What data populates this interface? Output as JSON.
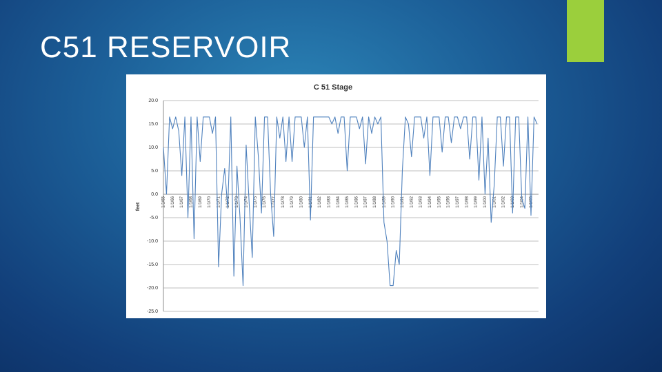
{
  "title": "C51 RESERVOIR",
  "chart_data": {
    "type": "line",
    "title": "C 51 Stage",
    "y_label": "feet",
    "categories": [
      "1/1/65",
      null,
      null,
      "1/1/66",
      null,
      null,
      "1/1/67",
      null,
      null,
      "1/1/68",
      null,
      null,
      "1/1/69",
      null,
      null,
      "1/1/70",
      null,
      null,
      "1/1/71",
      null,
      null,
      "1/1/72",
      null,
      null,
      "1/1/73",
      null,
      null,
      "1/1/74",
      null,
      null,
      "1/1/75",
      null,
      null,
      "1/1/76",
      null,
      null,
      "1/1/77",
      null,
      null,
      "1/1/78",
      null,
      null,
      "1/1/79",
      null,
      null,
      "1/1/80",
      null,
      null,
      "1/1/81",
      null,
      null,
      "1/1/82",
      null,
      null,
      "1/1/83",
      null,
      null,
      "1/1/84",
      null,
      null,
      "1/1/85",
      null,
      null,
      "1/1/86",
      null,
      null,
      "1/1/87",
      null,
      null,
      "1/1/88",
      null,
      null,
      "1/1/89",
      null,
      null,
      "1/1/90",
      null,
      null,
      "1/1/91",
      null,
      null,
      "1/1/92",
      null,
      null,
      "1/1/93",
      null,
      null,
      "1/1/94",
      null,
      null,
      "1/1/95",
      null,
      null,
      "1/1/96",
      null,
      null,
      "1/1/97",
      null,
      null,
      "1/1/98",
      null,
      null,
      "1/1/99",
      null,
      null,
      "1/1/00",
      null,
      null,
      "1/1/01",
      null,
      null,
      "1/1/02",
      null,
      null,
      "1/1/03",
      null,
      null,
      "1/1/04",
      null,
      null,
      "1/1/05",
      null,
      null
    ],
    "values": [
      10,
      0,
      16.5,
      14,
      16.5,
      13.5,
      4,
      16.5,
      -5,
      16.5,
      -9.5,
      16.5,
      7,
      16.5,
      16.5,
      16.5,
      13,
      16.5,
      -15.5,
      0,
      5.5,
      -3,
      16.5,
      -17.5,
      6,
      -5,
      -19.5,
      10.5,
      -2,
      -13.5,
      16.5,
      8,
      -4,
      16.5,
      16.5,
      0,
      -9,
      16.5,
      12,
      16.5,
      7,
      16.5,
      7,
      16.5,
      16.5,
      16.5,
      10,
      16.5,
      -5.5,
      16.5,
      16.5,
      16.5,
      16.5,
      16.5,
      16.5,
      15,
      16.5,
      13,
      16.5,
      16.5,
      5,
      16.5,
      16.5,
      16.5,
      14,
      16.5,
      6.5,
      16.5,
      13,
      16.5,
      15,
      16.5,
      -6,
      -10,
      -19.5,
      -19.5,
      -12,
      -15,
      5,
      16.5,
      15,
      8,
      16.5,
      16.5,
      16.5,
      12,
      16.5,
      4,
      16.5,
      16.5,
      16.5,
      9,
      16.5,
      16.5,
      11,
      16.5,
      16.5,
      14,
      16.5,
      16.5,
      7.5,
      16.5,
      16.5,
      3,
      16.5,
      0,
      12,
      -6,
      2,
      16.5,
      16.5,
      6,
      16.5,
      16.5,
      -4,
      16.5,
      16.5,
      -1,
      -3,
      16.5,
      -4.5,
      16.5,
      15
    ],
    "color": "#4f81bd",
    "ylim": [
      -25,
      20
    ],
    "yticks": [
      {
        "value": 20,
        "label": "20.0"
      },
      {
        "value": 15,
        "label": "15.0"
      },
      {
        "value": 10,
        "label": "10.0"
      },
      {
        "value": 5,
        "label": "5.0"
      },
      {
        "value": 0,
        "label": "0.0"
      },
      {
        "value": -5,
        "label": "-5.0"
      },
      {
        "value": -10,
        "label": "-10.0"
      },
      {
        "value": -15,
        "label": "-15.0"
      },
      {
        "value": -20,
        "label": "-20.0"
      },
      {
        "value": -25,
        "label": "-25.0"
      }
    ],
    "grid": true
  }
}
